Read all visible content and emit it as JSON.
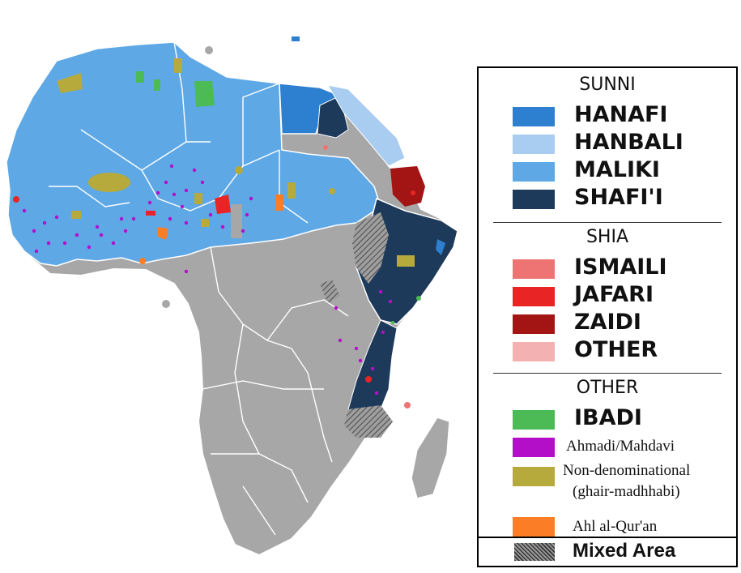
{
  "legend": {
    "sunni_header": "SUNNI",
    "shia_header": "SHIA",
    "other_header": "OTHER",
    "sunni": [
      {
        "label": "HANAFI",
        "color": "#2d7fcf"
      },
      {
        "label": "HANBALI",
        "color": "#a9cdf0"
      },
      {
        "label": "MALIKI",
        "color": "#5ea8e6"
      },
      {
        "label": "SHAFI'I",
        "color": "#1e3a5a"
      }
    ],
    "shia": [
      {
        "label": "ISMAILI",
        "color": "#ee7474"
      },
      {
        "label": "JAFARI",
        "color": "#e92424"
      },
      {
        "label": "ZAIDI",
        "color": "#a31414"
      },
      {
        "label": "OTHER",
        "color": "#f3b1b1"
      }
    ],
    "other": [
      {
        "label": "IBADI",
        "color": "#4cbb55"
      },
      {
        "label": "Ahmadi/Mahdavi",
        "color": "#b30fc9"
      },
      {
        "label_line1": "Non-denominational",
        "label_line2": "(ghair-madhhabi)",
        "color": "#b6aa3c"
      },
      {
        "label": "Ahl al-Qur'an",
        "color": "#fb7e26"
      }
    ],
    "mixed": {
      "label": "Mixed Area",
      "icon": "hatch-pattern-icon"
    }
  },
  "map": {
    "non_muslim_color": "#a7a7a7",
    "border_color": "#ffffff"
  }
}
